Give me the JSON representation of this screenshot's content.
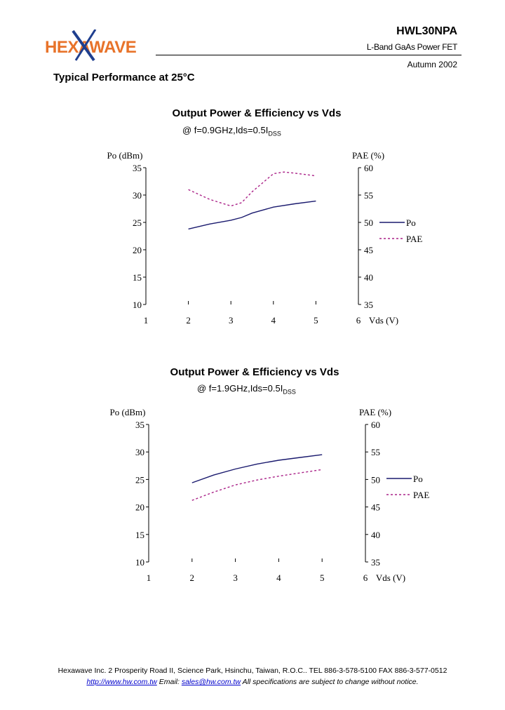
{
  "header": {
    "logo_text": "HEXAWAVE",
    "part_number": "HWL30NPA",
    "product": "L-Band  GaAs Power  FET",
    "date": "Autumn 2002",
    "colors": {
      "logo_orange": "#e8732a",
      "logo_blue": "#1f3f8f"
    }
  },
  "section_title": "Typical Performance at 25°C",
  "charts": [
    {
      "title": "Output Power & Efficiency vs Vds",
      "condition_main": "@ f=0.9GHz,Ids=0.5I",
      "condition_sub": "DSS",
      "left_axis_label": "Po (dBm)",
      "right_axis_label": "PAE (%)",
      "x_axis_label": "Vds (V)",
      "x_ticks": [
        "1",
        "2",
        "3",
        "4",
        "5",
        "6"
      ],
      "y_ticks": [
        "35",
        "30",
        "25",
        "20",
        "15",
        "10"
      ],
      "y2_ticks": [
        "60",
        "55",
        "50",
        "45",
        "40",
        "35"
      ],
      "legend": [
        "Po",
        "PAE"
      ]
    },
    {
      "title": "Output Power & Efficiency vs Vds",
      "condition_main": "@ f=1.9GHz,Ids=0.5I",
      "condition_sub": "DSS",
      "left_axis_label": "Po (dBm)",
      "right_axis_label": "PAE (%)",
      "x_axis_label": "Vds (V)",
      "x_ticks": [
        "1",
        "2",
        "3",
        "4",
        "5",
        "6"
      ],
      "y_ticks": [
        "35",
        "30",
        "25",
        "20",
        "15",
        "10"
      ],
      "y2_ticks": [
        "60",
        "55",
        "50",
        "45",
        "40",
        "35"
      ],
      "legend": [
        "Po",
        "PAE"
      ]
    }
  ],
  "chart_data": [
    {
      "type": "line",
      "title": "Output Power & Efficiency vs Vds",
      "xlabel": "Vds (V)",
      "ylabel": "Po (dBm)",
      "y2label": "PAE (%)",
      "xlim": [
        1,
        6
      ],
      "ylim": [
        10,
        35
      ],
      "y2lim": [
        35,
        60
      ],
      "legend_position": "right",
      "series": [
        {
          "name": "Po",
          "axis": "left",
          "style": "solid",
          "color": "#1a1a6e",
          "x": [
            2,
            2.5,
            3,
            3.25,
            3.5,
            4,
            4.5,
            5
          ],
          "y": [
            23.8,
            24.7,
            25.4,
            25.9,
            26.7,
            27.8,
            28.4,
            28.9
          ]
        },
        {
          "name": "PAE",
          "axis": "right",
          "style": "dashed",
          "color": "#aa2288",
          "x": [
            2,
            2.5,
            3,
            3.25,
            3.5,
            4,
            4.25,
            4.5,
            5
          ],
          "y": [
            56.0,
            54.2,
            53.0,
            53.6,
            55.6,
            58.9,
            59.2,
            59.0,
            58.5
          ]
        }
      ]
    },
    {
      "type": "line",
      "title": "Output Power & Efficiency vs Vds",
      "xlabel": "Vds (V)",
      "ylabel": "Po (dBm)",
      "y2label": "PAE (%)",
      "xlim": [
        1,
        6
      ],
      "ylim": [
        10,
        35
      ],
      "y2lim": [
        35,
        60
      ],
      "legend_position": "right",
      "series": [
        {
          "name": "Po",
          "axis": "left",
          "style": "solid",
          "color": "#1a1a6e",
          "x": [
            2,
            2.5,
            3,
            3.5,
            4,
            4.5,
            5
          ],
          "y": [
            24.4,
            25.8,
            26.9,
            27.8,
            28.5,
            29.0,
            29.5
          ]
        },
        {
          "name": "PAE",
          "axis": "right",
          "style": "dashed",
          "color": "#aa2288",
          "x": [
            2,
            2.5,
            3,
            3.5,
            4,
            4.5,
            5
          ],
          "y": [
            46.2,
            47.7,
            49.0,
            49.9,
            50.6,
            51.2,
            51.8
          ]
        }
      ]
    }
  ],
  "footer": {
    "line1": "Hexawave Inc.  2 Prosperity Road II, Science Park, Hsinchu, Taiwan, R.O.C..  TEL 886-3-578-5100 FAX 886-3-577-0512",
    "url": "http://www.hw.com.tw",
    "email_label": "Email:",
    "email": "sales@hw.com.tw",
    "note": "All specifications are subject to change without notice."
  }
}
